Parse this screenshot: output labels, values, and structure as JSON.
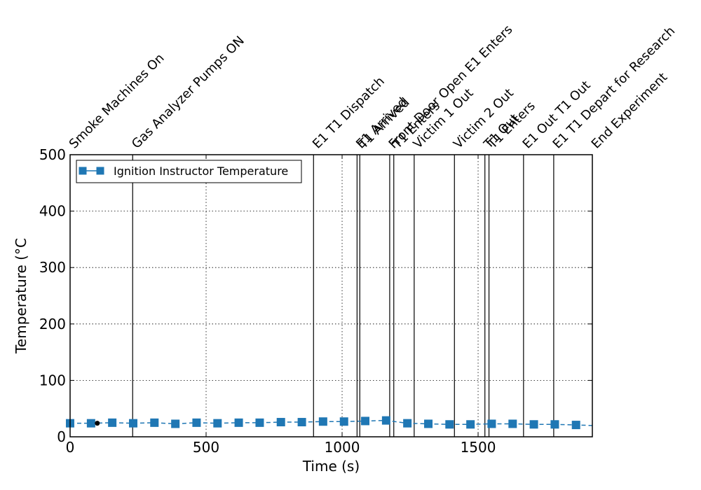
{
  "chart_data": {
    "type": "line",
    "title": "",
    "xlabel": "Time (s)",
    "ylabel": "Temperature (°C",
    "xlim": [
      0,
      1920
    ],
    "ylim": [
      0,
      500
    ],
    "xticks": [
      0,
      500,
      1000,
      1500
    ],
    "yticks": [
      0,
      100,
      200,
      300,
      400,
      500
    ],
    "grid": true,
    "legend_position": "upper-left",
    "series": [
      {
        "name": "Ignition Instructor Temperature",
        "color": "#1f77b4",
        "marker": "square",
        "line_style": "dashed",
        "x": [
          0,
          77,
          155,
          232,
          310,
          387,
          465,
          542,
          620,
          697,
          775,
          852,
          930,
          1007,
          1085,
          1162,
          1240,
          1317,
          1395,
          1472,
          1550,
          1627,
          1705,
          1782,
          1860,
          1920
        ],
        "y": [
          24,
          24,
          25,
          24,
          25,
          23,
          25,
          24,
          25,
          25,
          26,
          26,
          27,
          27,
          28,
          29,
          24,
          23,
          22,
          22,
          23,
          23,
          22,
          22,
          21,
          20
        ],
        "marker_x": [
          0,
          77,
          155,
          232,
          310,
          387,
          465,
          542,
          620,
          697,
          775,
          852,
          930,
          1007,
          1085,
          1162,
          1240,
          1317,
          1395,
          1472,
          1550,
          1627,
          1705,
          1782,
          1860
        ],
        "marker_y": [
          24,
          24,
          25,
          24,
          25,
          23,
          25,
          24,
          25,
          25,
          26,
          26,
          27,
          27,
          28,
          29,
          24,
          23,
          22,
          22,
          23,
          23,
          22,
          22,
          21
        ]
      }
    ],
    "extra_point": {
      "x": 100,
      "y": 24,
      "color": "#000000"
    },
    "events": [
      {
        "time": 0,
        "label": "Smoke Machines On"
      },
      {
        "time": 230,
        "label": "Gas Analyzer Pumps ON"
      },
      {
        "time": 895,
        "label": "E1 T1 Dispatch"
      },
      {
        "time": 1055,
        "label": "E1 Arrived"
      },
      {
        "time": 1065,
        "label": "T1 Arrived"
      },
      {
        "time": 1175,
        "label": "Front Door Open E1 Enters"
      },
      {
        "time": 1190,
        "label": "T1 Enters"
      },
      {
        "time": 1265,
        "label": "Victim 1 Out"
      },
      {
        "time": 1413,
        "label": "Victim 2 Out"
      },
      {
        "time": 1525,
        "label": "T1 Out"
      },
      {
        "time": 1540,
        "label": "T1 Enters"
      },
      {
        "time": 1667,
        "label": "E1 Out T1 Out"
      },
      {
        "time": 1778,
        "label": "E1 T1 Depart for Research"
      },
      {
        "time": 1920,
        "label": "End Experiment"
      }
    ]
  }
}
